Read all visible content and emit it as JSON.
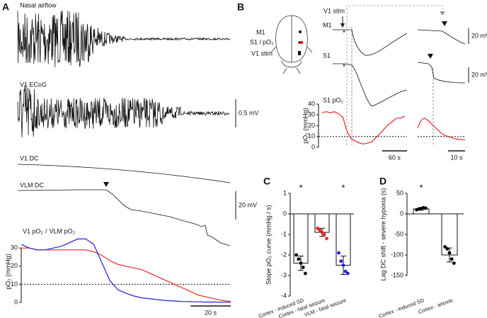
{
  "chart_data": [
    {
      "type": "traces",
      "panel": "A",
      "traces": [
        "Nasal airflow",
        "V1 ECoG",
        "V1 DC",
        "VLM DC"
      ],
      "scale_bars": [
        "0.5 mV",
        "20 mV"
      ]
    },
    {
      "type": "line",
      "ylabel": "pO₂ (mmHg)",
      "legend_separator": "/",
      "x": [
        0,
        4,
        8,
        12,
        16,
        20,
        24,
        28,
        32,
        36,
        40,
        44,
        48,
        52,
        56,
        60,
        64,
        68,
        72,
        76,
        80,
        84,
        88,
        92,
        96,
        100,
        104
      ],
      "xlim": [
        0,
        104
      ],
      "ylim": [
        0,
        34
      ],
      "yticks": [
        0,
        10,
        20,
        30
      ],
      "hline": 10,
      "series": [
        {
          "name": "V1 pO₂",
          "color": "#e8262b",
          "values": [
            30,
            30,
            29,
            29,
            29,
            29,
            29,
            29,
            29,
            28,
            26,
            23,
            21,
            20,
            19,
            18,
            16,
            14,
            12,
            10,
            8,
            6,
            4,
            3,
            2,
            1,
            0.5
          ]
        },
        {
          "name": "VLM pO₂",
          "color": "#1f1fd6",
          "values": [
            32,
            30,
            29,
            29,
            30,
            31,
            33,
            35,
            35,
            32,
            22,
            12,
            7,
            5,
            3.5,
            2.5,
            2,
            1.5,
            1,
            0.8,
            0.5,
            0.4,
            0.3,
            0.2,
            0.2,
            0.1,
            0.1
          ]
        }
      ],
      "scale_bar": {
        "value": 20,
        "label": "20 s"
      }
    },
    {
      "type": "traces",
      "panel": "B",
      "schematic_labels": [
        "M1",
        "S1 /",
        "pO₂",
        "V1 stim"
      ],
      "stimulus": "V1 stim",
      "traces": [
        "M1",
        "S1",
        "S1 pO₂"
      ],
      "scale_bars": [
        "20 mV",
        "20 mV"
      ]
    },
    {
      "type": "line",
      "ylabel": "pO₂ (mmHg)",
      "x": [
        0,
        10,
        20,
        30,
        40,
        50,
        60,
        70,
        80,
        90,
        100,
        110,
        120,
        130,
        140,
        150,
        160,
        170,
        180,
        190,
        200
      ],
      "xlim": [
        0,
        205
      ],
      "ylim": [
        0,
        40
      ],
      "yticks": [
        0,
        10,
        20,
        30,
        40
      ],
      "hline": 10,
      "series": [
        {
          "color": "#e8262b",
          "values": [
            32,
            33,
            32,
            33,
            31,
            28,
            15,
            8,
            6,
            4,
            3,
            4,
            5,
            9,
            13,
            17,
            21,
            24,
            27,
            27,
            29
          ]
        }
      ],
      "scale_bar": {
        "value": 60,
        "label": "60 s"
      }
    },
    {
      "type": "line",
      "x": [
        0,
        2,
        4,
        6,
        8,
        10,
        12,
        14,
        16,
        18,
        20,
        22,
        24,
        26,
        28
      ],
      "xlim": [
        0,
        28
      ],
      "ylim": [
        0,
        40
      ],
      "hline": 10,
      "series": [
        {
          "color": "#e8262b",
          "values": [
            18,
            25,
            27,
            25,
            22,
            19,
            16,
            13,
            11,
            10,
            9,
            8,
            7.5,
            7,
            7
          ]
        }
      ],
      "scale_bar": {
        "value": 10,
        "label": "10 s"
      }
    },
    {
      "type": "bar",
      "panel": "C",
      "ylabel": "Slope pO₂ curve (mmHg / s)",
      "categories": [
        "Cortex - induced SD",
        "Cortex - fatal seizure",
        "VLM - fatal seizure"
      ],
      "values": [
        -2.4,
        -0.9,
        -2.5
      ],
      "errors": [
        0.35,
        0.2,
        0.45
      ],
      "points": [
        [
          -2.0,
          -2.2,
          -2.4,
          -2.6,
          -2.9
        ],
        [
          -0.7,
          -0.8,
          -0.9,
          -1.0,
          -1.2
        ],
        [
          -1.9,
          -2.3,
          -2.5,
          -2.8,
          -2.9
        ]
      ],
      "point_colors": [
        "#000000",
        "#e8262b",
        "#1f1fd6"
      ],
      "ylim": [
        -4,
        1
      ],
      "yticks": [
        -4,
        -3,
        -2,
        -1,
        0,
        1
      ],
      "significance": [
        "*",
        null,
        "*"
      ]
    },
    {
      "type": "bar",
      "panel": "D",
      "ylabel": "Lag DC shift - severe hypoxia (s)",
      "categories": [
        "Cortex - induced SD",
        "Cortex - anoxia"
      ],
      "values": [
        12,
        -100
      ],
      "errors": [
        3,
        17
      ],
      "points": [
        [
          10,
          12,
          13,
          15,
          14
        ],
        [
          -80,
          -85,
          -95,
          -110,
          -120
        ]
      ],
      "point_colors": [
        "#000000",
        "#000000"
      ],
      "ylim": [
        -150,
        50
      ],
      "yticks": [
        -150,
        -100,
        -50,
        0,
        50
      ],
      "significance": [
        "*",
        null
      ]
    }
  ]
}
